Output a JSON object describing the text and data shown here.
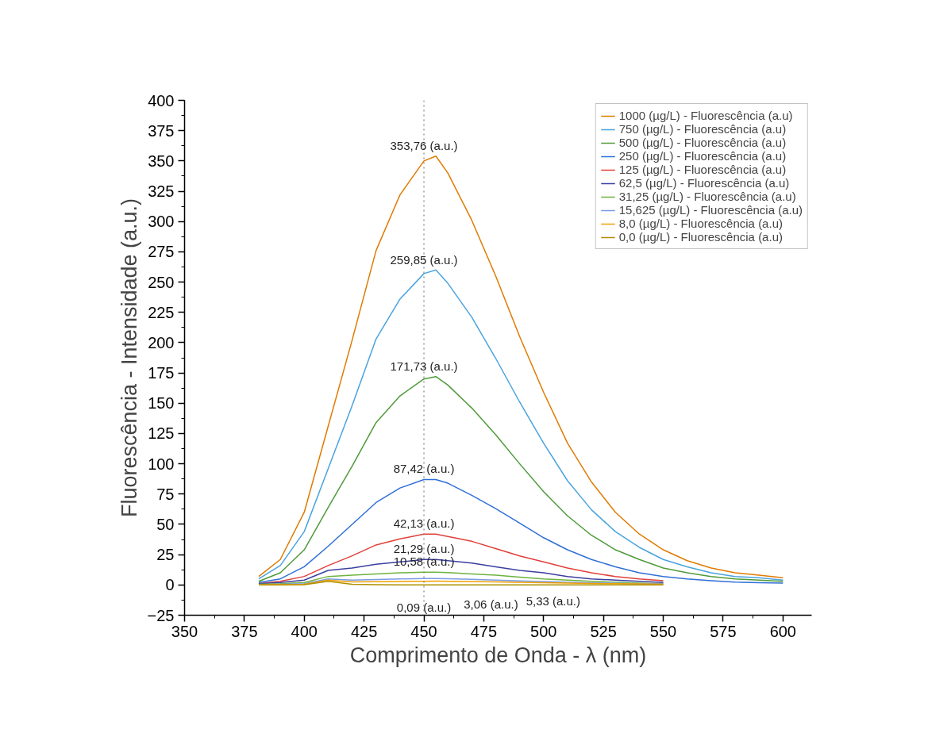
{
  "chart_data": {
    "type": "line",
    "xlabel": "Comprimento de Onda - λ (nm)",
    "ylabel": "Fluorescência - Intensidade (a.u.)",
    "x": [
      381,
      390,
      400,
      410,
      420,
      430,
      440,
      450,
      455,
      460,
      470,
      480,
      490,
      500,
      510,
      520,
      530,
      540,
      550,
      560,
      570,
      580,
      590,
      600
    ],
    "series": [
      {
        "name": "1000 (µg/L) - Fluorescência (a.u)",
        "color": "#e07b00",
        "values": [
          7,
          21,
          60,
          131,
          202,
          276,
          322,
          350,
          354,
          340,
          301,
          255,
          205,
          159,
          117,
          85,
          60,
          42,
          29,
          20,
          14,
          10,
          8,
          6
        ]
      },
      {
        "name": "750 (µg/L) - Fluorescência (a.u)",
        "color": "#4aa3df",
        "values": [
          5,
          16,
          44,
          96,
          148,
          203,
          236,
          257,
          260,
          249,
          221,
          187,
          151,
          117,
          86,
          62,
          44,
          31,
          21,
          15,
          10,
          7,
          6,
          4
        ]
      },
      {
        "name": "500 (µg/L) - Fluorescência (a.u)",
        "color": "#4f9a3a",
        "values": [
          3,
          10,
          29,
          64,
          98,
          134,
          156,
          170,
          172,
          165,
          146,
          124,
          100,
          77,
          57,
          41,
          29,
          21,
          14,
          10,
          7,
          5,
          4,
          3
        ]
      },
      {
        "name": "250 (µg/L) - Fluorescência (a.u)",
        "color": "#2f6fd6",
        "values": [
          2,
          5,
          15,
          32,
          50,
          68,
          80,
          87,
          87,
          84,
          74,
          63,
          51,
          39,
          29,
          21,
          15,
          10,
          7,
          5,
          3.5,
          2.4,
          1.9,
          1.5
        ]
      },
      {
        "name": "125 (µg/L) - Fluorescência (a.u)",
        "color": "#e0403a",
        "values": [
          1,
          3,
          7,
          16,
          24,
          33,
          38,
          42,
          42,
          40,
          36,
          30,
          24,
          19,
          14,
          10,
          7,
          5,
          3.5,
          null,
          null,
          null,
          null,
          null
        ]
      },
      {
        "name": "62,5 (µg/L) - Fluorescência (a.u)",
        "color": "#3b3fa0",
        "values": [
          1,
          2,
          4,
          12,
          14,
          17,
          19,
          21,
          21,
          20,
          18,
          15,
          12,
          10,
          7,
          5,
          4,
          3,
          2,
          null,
          null,
          null,
          null,
          null
        ]
      },
      {
        "name": "31,25 (µg/L) - Fluorescência (a.u)",
        "color": "#6db33f",
        "values": [
          0.5,
          1,
          2,
          7,
          8,
          9,
          10,
          10.5,
          10.6,
          10.2,
          9,
          8,
          6.5,
          5,
          4,
          3,
          2.2,
          1.6,
          1.1,
          null,
          null,
          null,
          null,
          null
        ]
      },
      {
        "name": "15,625 (µg/L) - Fluorescência (a.u)",
        "color": "#7a9ae6",
        "values": [
          0.3,
          0.5,
          1,
          5,
          4,
          4.5,
          5,
          5.3,
          5.3,
          5.1,
          4.6,
          4,
          3.4,
          2.8,
          2.2,
          1.7,
          1.3,
          1,
          0.8,
          null,
          null,
          null,
          null,
          null
        ]
      },
      {
        "name": "8,0 (µg/L) - Fluorescência (a.u)",
        "color": "#f0a000",
        "values": [
          0.2,
          0.3,
          0.6,
          4,
          2.5,
          2.7,
          2.9,
          3,
          3.1,
          3,
          2.8,
          2.5,
          2.2,
          1.8,
          1.5,
          1.2,
          1,
          0.8,
          0.6,
          null,
          null,
          null,
          null,
          null
        ]
      },
      {
        "name": "0,0 (µg/L) - Fluorescência (a.u)",
        "color": "#b09000",
        "values": [
          0,
          0,
          0.2,
          3,
          0.5,
          0.2,
          0.1,
          0.1,
          0.1,
          0.1,
          0.1,
          0.1,
          0.1,
          0.1,
          0.1,
          0.1,
          0,
          0,
          0,
          null,
          null,
          null,
          null,
          null
        ]
      }
    ],
    "annotations": [
      {
        "text": "353,76 (a.u.)",
        "x": 450,
        "y": 353.76
      },
      {
        "text": "259,85 (a.u.)",
        "x": 450,
        "y": 259.85
      },
      {
        "text": "171,73 (a.u.)",
        "x": 450,
        "y": 171.73
      },
      {
        "text": "87,42 (a.u.)",
        "x": 450,
        "y": 87.42
      },
      {
        "text": "42,13 (a.u.)",
        "x": 450,
        "y": 42.13
      },
      {
        "text": "21,29 (a.u.)",
        "x": 450,
        "y": 21.29
      },
      {
        "text": "10,58 (a.u.)",
        "x": 450,
        "y": 10.58
      },
      {
        "text": "0,09 (a.u.)",
        "x": 450,
        "y": 0.09
      },
      {
        "text": "3,06 (a.u.)",
        "x": 478,
        "y": 3.06
      },
      {
        "text": "5,33 (a.u.)",
        "x": 504,
        "y": 5.33
      }
    ],
    "ref_lines": [
      {
        "axis": "x",
        "value": 450,
        "label": null,
        "color": "#808080",
        "line_style": "dotted"
      }
    ],
    "xlim": [
      350,
      612
    ],
    "ylim": [
      -25,
      400
    ],
    "xticks": [
      350,
      375,
      400,
      425,
      450,
      475,
      500,
      525,
      550,
      575,
      600
    ],
    "yticks": [
      {
        "value": -25,
        "label": "−25"
      },
      0,
      25,
      50,
      75,
      100,
      125,
      150,
      175,
      200,
      225,
      250,
      275,
      300,
      325,
      350,
      375,
      400
    ],
    "grid": false,
    "legend": "top right",
    "line_style": "solid",
    "marker": "none"
  }
}
